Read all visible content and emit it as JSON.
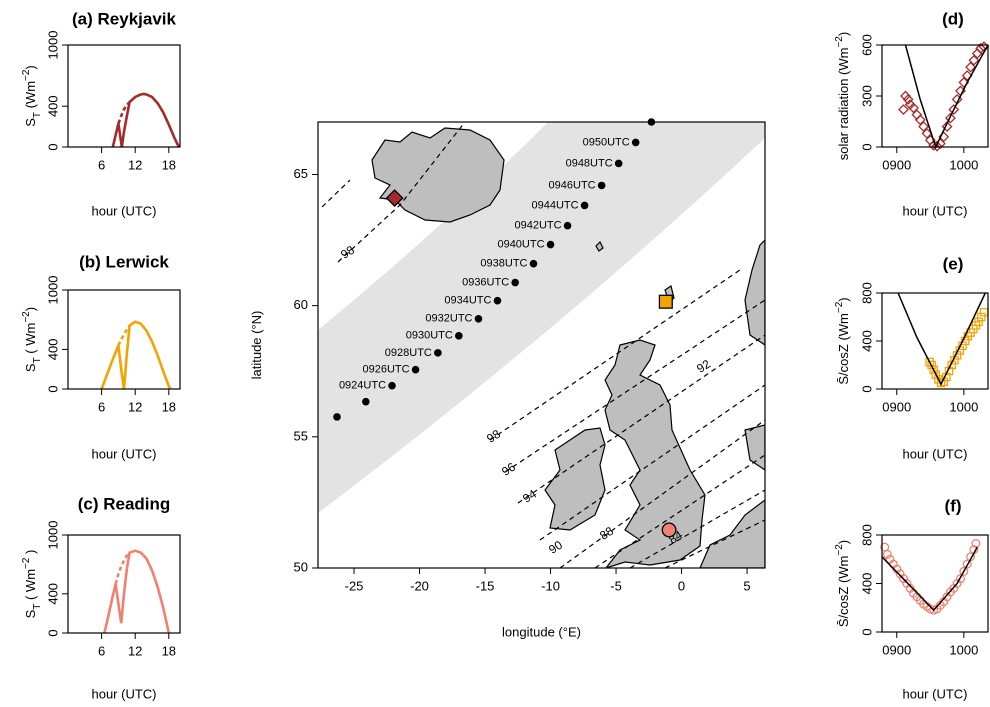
{
  "chart_data": [
    {
      "type": "line",
      "title": "(a) Reykjavik",
      "xlabel": "hour (UTC)",
      "ylabel": [
        {
          "text": "S"
        },
        {
          "text": "T",
          "script": "sub"
        },
        {
          "text": " (Wm"
        },
        {
          "text": "−2",
          "script": "super"
        },
        {
          "text": ")"
        }
      ],
      "xlim": [
        0,
        20
      ],
      "ylim": [
        0,
        1000
      ],
      "xticks": [
        6,
        12,
        18
      ],
      "yticks": [
        0,
        400,
        1000
      ],
      "x": [
        8,
        9,
        9.6,
        10,
        10.5,
        11,
        12,
        13,
        13.5,
        14,
        15,
        16,
        17,
        18,
        19,
        19.8
      ],
      "series": [
        {
          "color": "#a52a2a",
          "style": "solid",
          "values": [
            0,
            230,
            0,
            150,
            300,
            440,
            490,
            515,
            520,
            515,
            490,
            430,
            340,
            220,
            90,
            0
          ]
        },
        {
          "color": "#a52a2a",
          "style": "dashed",
          "values": [
            null,
            230,
            320,
            370,
            410,
            440,
            null,
            null,
            null,
            null,
            null,
            null,
            null,
            null,
            null,
            null
          ]
        }
      ]
    },
    {
      "type": "line",
      "title": "(b) Lerwick",
      "xlabel": "hour (UTC)",
      "ylabel": [
        {
          "text": "S"
        },
        {
          "text": "T",
          "script": "sub"
        },
        {
          "text": " ( Wm"
        },
        {
          "text": "−2",
          "script": "super"
        },
        {
          "text": ")"
        }
      ],
      "xlim": [
        0,
        20
      ],
      "ylim": [
        0,
        1000
      ],
      "xticks": [
        6,
        12,
        18
      ],
      "yticks": [
        0,
        400,
        1000
      ],
      "x": [
        6,
        7,
        8,
        9,
        9.5,
        10,
        10.5,
        11,
        12,
        13,
        14,
        15,
        16,
        17,
        18,
        18.3
      ],
      "series": [
        {
          "color": "#f5a300",
          "style": "solid",
          "values": [
            0,
            150,
            300,
            440,
            200,
            0,
            350,
            640,
            680,
            660,
            590,
            480,
            340,
            180,
            30,
            0
          ]
        },
        {
          "color": "#f5a300",
          "style": "dashed",
          "values": [
            null,
            null,
            null,
            440,
            500,
            550,
            600,
            640,
            null,
            null,
            null,
            null,
            null,
            null,
            null,
            null
          ]
        }
      ]
    },
    {
      "type": "line",
      "title": "(c) Reading",
      "xlabel": "hour (UTC)",
      "ylabel": [
        {
          "text": "S"
        },
        {
          "text": "T",
          "script": "sub"
        },
        {
          "text": " ( Wm"
        },
        {
          "text": "−2",
          "script": "super"
        },
        {
          "text": " )"
        }
      ],
      "xlim": [
        0,
        20
      ],
      "ylim": [
        0,
        1000
      ],
      "xticks": [
        6,
        12,
        18
      ],
      "yticks": [
        0,
        400,
        1000
      ],
      "x": [
        6.5,
        7,
        8,
        8.5,
        9,
        9.5,
        10,
        10.5,
        11,
        12,
        13,
        14,
        15,
        16,
        17,
        18
      ],
      "series": [
        {
          "color": "#f08070",
          "style": "solid",
          "values": [
            0,
            120,
            380,
            500,
            300,
            100,
            400,
            650,
            820,
            840,
            820,
            760,
            640,
            470,
            260,
            0
          ]
        },
        {
          "color": "#f08070",
          "style": "dashed",
          "values": [
            null,
            null,
            null,
            500,
            600,
            680,
            740,
            790,
            820,
            null,
            null,
            null,
            null,
            null,
            null,
            null
          ]
        }
      ]
    },
    {
      "type": "map",
      "xlabel": "longitude (°E)",
      "ylabel": [
        {
          "text": "latitude (°N)"
        }
      ],
      "xlim": [
        -27.75,
        6.37
      ],
      "ylim": [
        50,
        67
      ],
      "xticks": [
        -25,
        -20,
        -15,
        -10,
        -5,
        0,
        5
      ],
      "yticks": [
        50,
        55,
        60,
        65
      ],
      "x": [
        -26.3,
        -24.1,
        -22.1,
        -20.3,
        -18.6,
        -17.0,
        -15.5,
        -14.05,
        -12.7,
        -11.3,
        -10.0,
        -8.7,
        -7.4,
        -6.1,
        -4.8,
        -3.5,
        -2.3
      ],
      "y": [
        55.76,
        56.34,
        56.95,
        57.56,
        58.2,
        58.85,
        59.5,
        60.19,
        60.88,
        61.6,
        62.33,
        63.05,
        63.82,
        64.58,
        65.42,
        66.22,
        67.0
      ],
      "point_labels": [
        null,
        null,
        "0924UTC",
        "0926UTC",
        "0928UTC",
        "0930UTC",
        "0932UTC",
        "0934UTC",
        "0936UTC",
        "0938UTC",
        "0940UTC",
        "0942UTC",
        "0944UTC",
        "0946UTC",
        "0948UTC",
        "0950UTC",
        null
      ],
      "color": "#000000",
      "markers": [
        {
          "x": -21.9,
          "y": 64.1,
          "shape": "diamond",
          "color": "#a52a2a"
        },
        {
          "x": -1.2,
          "y": 60.15,
          "shape": "square",
          "color": "#f5a300"
        },
        {
          "x": -0.95,
          "y": 51.45,
          "shape": "circle",
          "color": "#f08070"
        }
      ],
      "contour_labels": [
        98,
        98,
        96,
        94,
        92,
        90,
        88,
        84
      ]
    },
    {
      "type": "scatter",
      "title": "(d)",
      "xlabel": "hour (UTC)",
      "ylabel": [
        {
          "text": "solar radiation (Wm"
        },
        {
          "text": "−2",
          "script": "super"
        },
        {
          "text": ")"
        }
      ],
      "xlim": [
        8.78,
        10.36
      ],
      "ylim": [
        0,
        600
      ],
      "xticks": [
        {
          "value": 9,
          "label": "0900"
        },
        {
          "value": 10,
          "label": "1000"
        }
      ],
      "yticks": [
        0,
        300,
        600
      ],
      "marker": "diamond",
      "color": "#a52a2a",
      "x": [
        9.1,
        9.13,
        9.17,
        9.2,
        9.25,
        9.3,
        9.35,
        9.4,
        9.45,
        9.5,
        9.55,
        9.6,
        9.65,
        9.7,
        9.75,
        9.8,
        9.85,
        9.9,
        9.95,
        10.0,
        10.05,
        10.1,
        10.15,
        10.2,
        10.25,
        10.3
      ],
      "values": [
        220,
        300,
        280,
        250,
        230,
        190,
        160,
        120,
        80,
        40,
        10,
        5,
        20,
        60,
        120,
        170,
        220,
        280,
        330,
        380,
        420,
        470,
        510,
        550,
        580,
        590
      ],
      "line": {
        "color": "#000000",
        "x": [
          9.13,
          9.35,
          9.58,
          9.8,
          10.05,
          10.36
        ],
        "values": [
          600,
          280,
          0,
          180,
          380,
          600
        ]
      }
    },
    {
      "type": "scatter",
      "title": "(e)",
      "xlabel": "hour (UTC)",
      "ylabel": [
        {
          "text": "S̄/cosZ   (Wm"
        },
        {
          "text": "−2",
          "script": "super"
        },
        {
          "text": ")"
        }
      ],
      "xlim": [
        8.78,
        10.36
      ],
      "ylim": [
        0,
        800
      ],
      "xticks": [
        {
          "value": 9,
          "label": "0900"
        },
        {
          "value": 10,
          "label": "1000"
        }
      ],
      "yticks": [
        0,
        400,
        800
      ],
      "marker": "square",
      "color": "#f5a300",
      "x": [
        9.49,
        9.52,
        9.55,
        9.58,
        9.62,
        9.66,
        9.7,
        9.74,
        9.78,
        9.82,
        9.86,
        9.9,
        9.94,
        9.98,
        10.02,
        10.06,
        10.1,
        10.14,
        10.18,
        10.22,
        10.26,
        10.3
      ],
      "values": [
        225,
        200,
        160,
        120,
        80,
        50,
        60,
        100,
        150,
        200,
        240,
        280,
        320,
        360,
        400,
        440,
        470,
        500,
        530,
        560,
        600,
        640
      ],
      "line": {
        "color": "#000000",
        "x": [
          9.02,
          9.3,
          9.66,
          10.0,
          10.32
        ],
        "values": [
          800,
          430,
          40,
          420,
          800
        ]
      }
    },
    {
      "type": "scatter",
      "title": "(f)",
      "xlabel": "hour (UTC)",
      "ylabel": [
        {
          "text": "S̄/cosZ   (Wm"
        },
        {
          "text": "−2",
          "script": "super"
        },
        {
          "text": ")"
        }
      ],
      "xlim": [
        8.78,
        10.36
      ],
      "ylim": [
        0,
        800
      ],
      "xticks": [
        {
          "value": 9,
          "label": "0900"
        },
        {
          "value": 10,
          "label": "1000"
        }
      ],
      "yticks": [
        0,
        400,
        800
      ],
      "marker": "circle",
      "color": "#f08070",
      "x": [
        8.82,
        8.86,
        8.9,
        8.95,
        9.0,
        9.05,
        9.1,
        9.15,
        9.2,
        9.25,
        9.3,
        9.35,
        9.4,
        9.45,
        9.5,
        9.55,
        9.6,
        9.65,
        9.7,
        9.75,
        9.8,
        9.85,
        9.9,
        9.95,
        10.0,
        10.05,
        10.1,
        10.15,
        10.18
      ],
      "values": [
        700,
        640,
        600,
        560,
        520,
        480,
        440,
        400,
        360,
        320,
        290,
        260,
        230,
        210,
        190,
        180,
        190,
        220,
        250,
        290,
        330,
        360,
        400,
        440,
        500,
        560,
        620,
        680,
        730
      ],
      "line": {
        "color": "#000000",
        "x": [
          8.78,
          9.2,
          9.55,
          9.9,
          10.2
        ],
        "values": [
          620,
          380,
          180,
          400,
          700
        ]
      }
    }
  ]
}
